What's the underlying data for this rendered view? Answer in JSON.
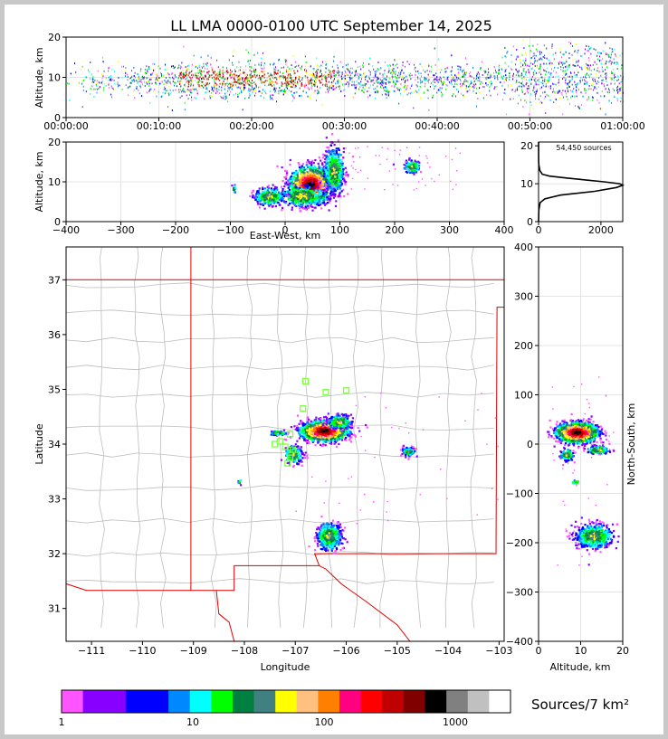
{
  "title": "LL LMA 0000-0100 UTC September 14, 2025",
  "timeSeries": {
    "ylabel": "Altitude, km",
    "yticks": [
      "0",
      "10",
      "20"
    ],
    "xticks": [
      "00:00:00",
      "00:10:00",
      "00:20:00",
      "00:30:00",
      "00:40:00",
      "00:50:00",
      "01:00:00"
    ]
  },
  "ewPanel": {
    "ylabel": "Altitude, km",
    "xlabel": "East-West, km",
    "yticks": [
      "0",
      "10",
      "20"
    ],
    "xticks": [
      "−400",
      "−300",
      "−200",
      "−100",
      "0",
      "100",
      "200",
      "300",
      "400"
    ]
  },
  "histogram": {
    "annotation": "54,450 sources",
    "yticks": [
      "0",
      "10",
      "20"
    ],
    "xticks": [
      "0",
      "2000"
    ]
  },
  "mapPanel": {
    "xlabel": "Longitude",
    "ylabel": "Latitude",
    "xticks": [
      "−111",
      "−110",
      "−109",
      "−108",
      "−107",
      "−106",
      "−105",
      "−104",
      "−103"
    ],
    "yticks": [
      "31",
      "32",
      "33",
      "34",
      "35",
      "36",
      "37"
    ]
  },
  "nsPanel": {
    "xlabel": "Altitude, km",
    "ylabel": "North-South, km",
    "xticks": [
      "0",
      "10",
      "20"
    ],
    "yticks": [
      "−400",
      "−300",
      "−200",
      "−100",
      "0",
      "100",
      "200",
      "300",
      "400"
    ]
  },
  "colorbar": {
    "label": "Sources/7 km²",
    "ticks": [
      "1",
      "10",
      "100",
      "1000"
    ],
    "colors": [
      "#ff55ff",
      "#8800ff",
      "#8800ff",
      "#0000ff",
      "#0000ff",
      "#0088ff",
      "#00ffff",
      "#00ff00",
      "#008040",
      "#408080",
      "#ffff00",
      "#ffc080",
      "#ff8000",
      "#ff0080",
      "#ff0000",
      "#c00000",
      "#800000",
      "#000000",
      "#808080",
      "#c0c0c0",
      "#ffffff"
    ]
  },
  "chart_data": [
    {
      "type": "scatter",
      "panel": "time-altitude",
      "x_range": [
        "00:00:00",
        "01:00:00"
      ],
      "ylim": [
        0,
        20
      ],
      "ylabel": "Altitude, km",
      "core_altitude_km": [
        6,
        13
      ]
    },
    {
      "type": "heatmap",
      "panel": "east-west-altitude",
      "xlabel": "East-West, km",
      "ylabel": "Altitude, km",
      "xlim": [
        -400,
        400
      ],
      "ylim": [
        0,
        20
      ],
      "clusters": [
        {
          "x": 40,
          "y": 10,
          "peak": true
        },
        {
          "x": 90,
          "y": 13
        },
        {
          "x": -30,
          "y": 6.5
        },
        {
          "x": 230,
          "y": 14
        },
        {
          "x": -95,
          "y": 8.5
        }
      ]
    },
    {
      "type": "line",
      "panel": "altitude-histogram",
      "annotation": "54,450 sources",
      "xlim": [
        0,
        2700
      ],
      "ylim": [
        0,
        21
      ],
      "profile": [
        {
          "alt": 0,
          "count": 0
        },
        {
          "alt": 3,
          "count": 10
        },
        {
          "alt": 5,
          "count": 50
        },
        {
          "alt": 6,
          "count": 200
        },
        {
          "alt": 7,
          "count": 700
        },
        {
          "alt": 8,
          "count": 1800
        },
        {
          "alt": 9,
          "count": 2500
        },
        {
          "alt": 9.6,
          "count": 2700
        },
        {
          "alt": 10,
          "count": 2600
        },
        {
          "alt": 10.5,
          "count": 2100
        },
        {
          "alt": 11,
          "count": 1500
        },
        {
          "alt": 11.5,
          "count": 900
        },
        {
          "alt": 12,
          "count": 350
        },
        {
          "alt": 12.5,
          "count": 120
        },
        {
          "alt": 13.5,
          "count": 40
        },
        {
          "alt": 15,
          "count": 8
        },
        {
          "alt": 16,
          "count": 3
        },
        {
          "alt": 21,
          "count": 0
        }
      ]
    },
    {
      "type": "heatmap",
      "panel": "plan-view-map",
      "xlabel": "Longitude",
      "ylabel": "Latitude",
      "xlim": [
        -111.5,
        -102.9
      ],
      "ylim": [
        30.4,
        37.6
      ],
      "clusters": [
        {
          "lon": -106.5,
          "lat": 34.2,
          "peak": true
        },
        {
          "lon": -106.3,
          "lat": 32.3
        },
        {
          "lon": -104.8,
          "lat": 33.9
        },
        {
          "lon": -107.4,
          "lat": 34.2
        },
        {
          "lon": -107.0,
          "lat": 33.8
        }
      ],
      "stations": [
        {
          "lon": -106.8,
          "lat": 35.15
        },
        {
          "lon": -106.0,
          "lat": 34.98
        },
        {
          "lon": -106.4,
          "lat": 34.95
        },
        {
          "lon": -106.85,
          "lat": 34.65
        },
        {
          "lon": -107.1,
          "lat": 34.18
        },
        {
          "lon": -107.3,
          "lat": 34.05
        },
        {
          "lon": -107.4,
          "lat": 34.0
        },
        {
          "lon": -107.2,
          "lat": 33.95
        },
        {
          "lon": -107.05,
          "lat": 33.9
        },
        {
          "lon": -107.1,
          "lat": 33.75
        },
        {
          "lon": -107.15,
          "lat": 33.65
        }
      ]
    },
    {
      "type": "heatmap",
      "panel": "altitude-north-south",
      "xlabel": "Altitude, km",
      "ylabel": "North-South, km",
      "xlim": [
        0,
        20
      ],
      "ylim": [
        -400,
        400
      ],
      "clusters": [
        {
          "alt": 9,
          "y": 25,
          "peak": true
        },
        {
          "alt": 13,
          "y": -185
        },
        {
          "alt": 14,
          "y": -10
        },
        {
          "alt": 6,
          "y": -20
        },
        {
          "alt": 8,
          "y": -75
        }
      ]
    }
  ]
}
